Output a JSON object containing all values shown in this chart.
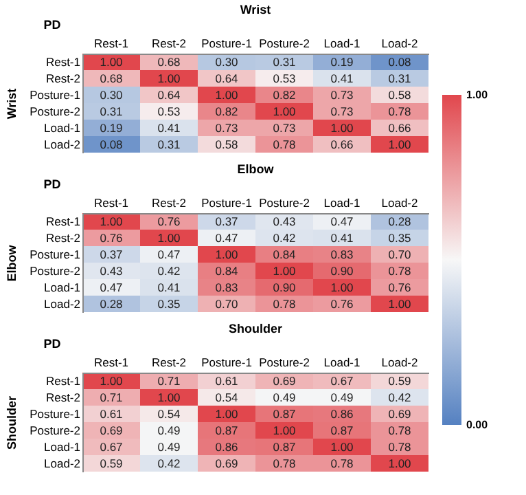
{
  "chart_data": [
    {
      "type": "heatmap",
      "title": "Wrist",
      "ylabel": "Wrist",
      "annotations": [
        "PD"
      ],
      "data_labels": true,
      "clim": [
        0,
        1
      ],
      "cticks": [
        {
          "value": 0,
          "label": "0.00"
        },
        {
          "value": 1,
          "label": "1.00"
        }
      ],
      "categories": [
        "Rest-1",
        "Rest-2",
        "Posture-1",
        "Posture-2",
        "Load-1",
        "Load-2"
      ],
      "y_categories": [
        "Rest-1",
        "Rest-2",
        "Posture-1",
        "Posture-2",
        "Load-1",
        "Load-2"
      ],
      "cells": [
        [
          1.0,
          0.68,
          0.3,
          0.31,
          0.19,
          0.08
        ],
        [
          0.68,
          1.0,
          0.64,
          0.53,
          0.41,
          0.31
        ],
        [
          0.3,
          0.64,
          1.0,
          0.82,
          0.73,
          0.58
        ],
        [
          0.31,
          0.53,
          0.82,
          1.0,
          0.73,
          0.78
        ],
        [
          0.19,
          0.41,
          0.73,
          0.73,
          1.0,
          0.66
        ],
        [
          0.08,
          0.31,
          0.58,
          0.78,
          0.66,
          1.0
        ]
      ],
      "cell_labels": [
        [
          "1.00",
          "0.68",
          "0.30",
          "0.31",
          "0.19",
          "0.08"
        ],
        [
          "0.68",
          "1.00",
          "0.64",
          "0.53",
          "0.41",
          "0.31"
        ],
        [
          "0.30",
          "0.64",
          "1.00",
          "0.82",
          "0.73",
          "0.58"
        ],
        [
          "0.31",
          "0.53",
          "0.82",
          "1.00",
          "0.73",
          "0.78"
        ],
        [
          "0.19",
          "0.41",
          "0.73",
          "0.73",
          "1.00",
          "0.66"
        ],
        [
          "0.08",
          "0.31",
          "0.58",
          "0.78",
          "0.66",
          "1.00"
        ]
      ]
    },
    {
      "type": "heatmap",
      "title": "Elbow",
      "ylabel": "Elbow",
      "annotations": [
        "PD"
      ],
      "data_labels": true,
      "categories": [
        "Rest-1",
        "Rest-2",
        "Posture-1",
        "Posture-2",
        "Load-1",
        "Load-2"
      ],
      "y_categories": [
        "Rest-1",
        "Rest-2",
        "Posture-1",
        "Posture-2",
        "Load-1",
        "Load-2"
      ],
      "cells": [
        [
          1.0,
          0.76,
          0.37,
          0.43,
          0.47,
          0.28
        ],
        [
          0.76,
          1.0,
          0.47,
          0.42,
          0.41,
          0.35
        ],
        [
          0.37,
          0.47,
          1.0,
          0.84,
          0.83,
          0.7
        ],
        [
          0.43,
          0.42,
          0.84,
          1.0,
          0.9,
          0.78
        ],
        [
          0.47,
          0.41,
          0.83,
          0.9,
          1.0,
          0.76
        ],
        [
          0.28,
          0.35,
          0.7,
          0.78,
          0.76,
          1.0
        ]
      ],
      "cell_labels": [
        [
          "1.00",
          "0.76",
          "0.37",
          "0.43",
          "0.47",
          "0.28"
        ],
        [
          "0.76",
          "1.00",
          "0.47",
          "0.42",
          "0.41",
          "0.35"
        ],
        [
          "0.37",
          "0.47",
          "1.00",
          "0.84",
          "0.83",
          "0.70"
        ],
        [
          "0.43",
          "0.42",
          "0.84",
          "1.00",
          "0.90",
          "0.78"
        ],
        [
          "0.47",
          "0.41",
          "0.83",
          "0.90",
          "1.00",
          "0.76"
        ],
        [
          "0.28",
          "0.35",
          "0.70",
          "0.78",
          "0.76",
          "1.00"
        ]
      ]
    },
    {
      "type": "heatmap",
      "title": "Shoulder",
      "ylabel": "Shoulder",
      "annotations": [
        "PD"
      ],
      "data_labels": true,
      "categories": [
        "Rest-1",
        "Rest-2",
        "Posture-1",
        "Posture-2",
        "Load-1",
        "Load-2"
      ],
      "y_categories": [
        "Rest-1",
        "Rest-2",
        "Posture-1",
        "Posture-2",
        "Load-1",
        "Load-2"
      ],
      "cells": [
        [
          1.0,
          0.71,
          0.61,
          0.69,
          0.67,
          0.59
        ],
        [
          0.71,
          1.0,
          0.54,
          0.49,
          0.49,
          0.42
        ],
        [
          0.61,
          0.54,
          1.0,
          0.87,
          0.86,
          0.69
        ],
        [
          0.69,
          0.49,
          0.87,
          1.0,
          0.87,
          0.78
        ],
        [
          0.67,
          0.49,
          0.86,
          0.87,
          1.0,
          0.78
        ],
        [
          0.59,
          0.42,
          0.69,
          0.78,
          0.78,
          1.0
        ]
      ],
      "cell_labels": [
        [
          "1.00",
          "0.71",
          "0.61",
          "0.69",
          "0.67",
          "0.59"
        ],
        [
          "0.71",
          "1.00",
          "0.54",
          "0.49",
          "0.49",
          "0.42"
        ],
        [
          "0.61",
          "0.54",
          "1.00",
          "0.87",
          "0.86",
          "0.69"
        ],
        [
          "0.69",
          "0.49",
          "0.87",
          "1.00",
          "0.87",
          "0.78"
        ],
        [
          "0.67",
          "0.49",
          "0.86",
          "0.87",
          "1.00",
          "0.78"
        ],
        [
          "0.59",
          "0.42",
          "0.69",
          "0.78",
          "0.78",
          "1.00"
        ]
      ]
    }
  ]
}
